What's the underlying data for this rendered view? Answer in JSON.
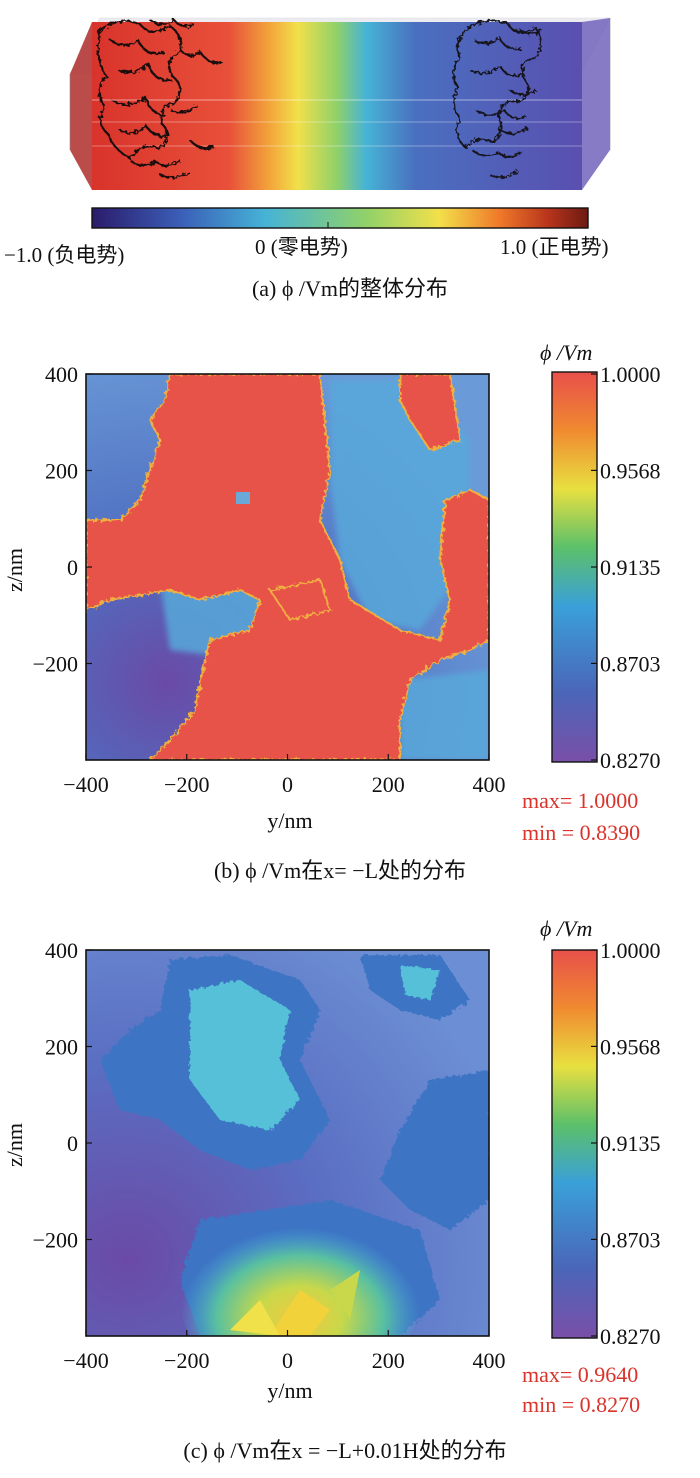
{
  "panel_a": {
    "colorbar_left": "−1.0 (负电势)",
    "colorbar_mid": "0 (零电势)",
    "colorbar_right": "1.0 (正电势)",
    "caption": "(a) ϕ /Vm的整体分布"
  },
  "panel_b": {
    "quantity": "ϕ /Vm",
    "xlabel": "y/nm",
    "ylabel": "z/nm",
    "x_ticks": [
      "−400",
      "−200",
      "0",
      "200",
      "400"
    ],
    "y_ticks": [
      "400",
      "200",
      "0",
      "−200"
    ],
    "colorbar_ticks": [
      "1.0000",
      "0.9568",
      "0.9135",
      "0.8703",
      "0.8270"
    ],
    "max_text": "max= 1.0000",
    "min_text": "min = 0.8390",
    "caption": "(b)  ϕ /Vm在x= −L处的分布"
  },
  "panel_c": {
    "quantity": "ϕ /Vm",
    "xlabel": "y/nm",
    "ylabel": "z/nm",
    "x_ticks": [
      "−400",
      "−200",
      "0",
      "200",
      "400"
    ],
    "y_ticks": [
      "400",
      "200",
      "0",
      "−200"
    ],
    "colorbar_ticks": [
      "1.0000",
      "0.9568",
      "0.9135",
      "0.8703",
      "0.8270"
    ],
    "max_text": "max= 0.9640",
    "min_text": "min = 0.8270",
    "caption": "(c) ϕ /Vm在x = −L+0.01H处的分布"
  },
  "chart_data": [
    {
      "type": "heatmap",
      "panel": "a",
      "colorbar_range": [
        -1.0,
        1.0
      ],
      "colormap": [
        "#2b1b6b",
        "#3b5fb8",
        "#46b3d6",
        "#8fd16a",
        "#f2e04a",
        "#f07a2a",
        "#d9332b",
        "#6b1a12"
      ]
    },
    {
      "type": "heatmap",
      "panel": "b",
      "xlabel": "y/nm",
      "ylabel": "z/nm",
      "xlim": [
        -400,
        400
      ],
      "ylim": [
        -400,
        400
      ],
      "x_ticks": [
        -400,
        -200,
        0,
        200,
        400
      ],
      "y_ticks": [
        400,
        200,
        0,
        -200
      ],
      "colorbar_range": [
        0.827,
        1.0
      ],
      "colorbar_ticks": [
        1.0,
        0.9568,
        0.9135,
        0.8703,
        0.827
      ],
      "max": 1.0,
      "min": 0.839,
      "colormap": [
        "#7a4fa8",
        "#4a66b8",
        "#3aa0d8",
        "#5cc06a",
        "#e8e040",
        "#f08a30",
        "#e8504a"
      ]
    },
    {
      "type": "heatmap",
      "panel": "c",
      "xlabel": "y/nm",
      "ylabel": "z/nm",
      "xlim": [
        -400,
        400
      ],
      "ylim": [
        -400,
        400
      ],
      "x_ticks": [
        -400,
        -200,
        0,
        200,
        400
      ],
      "y_ticks": [
        400,
        200,
        0,
        -200
      ],
      "colorbar_range": [
        0.827,
        1.0
      ],
      "colorbar_ticks": [
        1.0,
        0.9568,
        0.9135,
        0.8703,
        0.827
      ],
      "max": 0.964,
      "min": 0.827,
      "colormap": [
        "#7a4fa8",
        "#4a66b8",
        "#3aa0d8",
        "#5cc06a",
        "#e8e040",
        "#f08a30",
        "#e8504a"
      ]
    }
  ]
}
